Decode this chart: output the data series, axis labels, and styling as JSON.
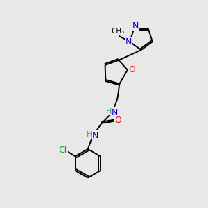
{
  "background_color": "#e8e8e8",
  "atom_colors": {
    "N": "#0000cc",
    "O": "#ff0000",
    "Cl": "#00aa00",
    "H": "#4a9a9a"
  },
  "figsize": [
    3.0,
    3.0
  ],
  "dpi": 100,
  "bond_lw": 1.4,
  "font_size": 9.0
}
